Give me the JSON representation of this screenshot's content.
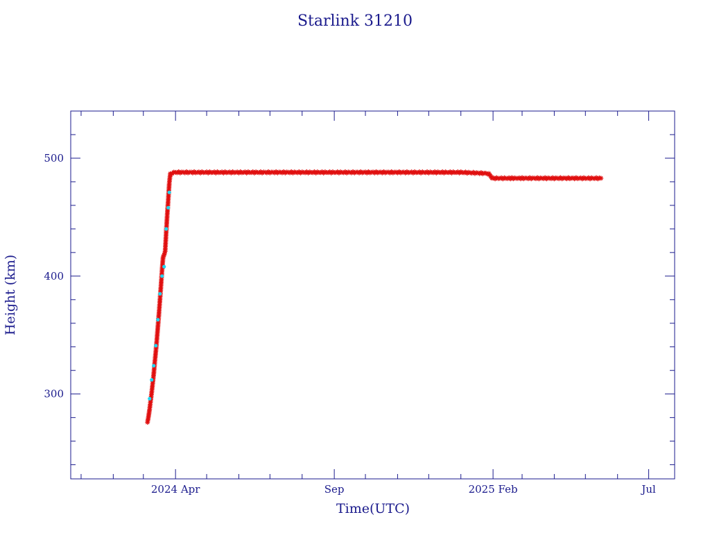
{
  "chart_data": {
    "type": "scatter",
    "title": "Starlink 31210",
    "xlabel": "Time(UTC)",
    "ylabel": "Height (km)",
    "x_unit": "date",
    "xlim": [
      "2023-12-22",
      "2025-07-26"
    ],
    "ylim": [
      228,
      540
    ],
    "x_ticks": [
      {
        "date": "2024-04-01",
        "label": "2024 Apr"
      },
      {
        "date": "2024-09-01",
        "label": "Sep"
      },
      {
        "date": "2025-02-01",
        "label": "2025 Feb"
      },
      {
        "date": "2025-07-01",
        "label": "Jul"
      }
    ],
    "y_ticks": [
      300,
      400,
      500
    ],
    "grid": false,
    "colors": {
      "axes": "#1a1a8c",
      "text": "#1a1a8c",
      "main_series": "#e01010",
      "secondary_series": "#22d3ee"
    },
    "series": [
      {
        "color": "#e01010",
        "marker": "asterisk",
        "x": [
          "2024-03-05",
          "2024-03-06",
          "2024-03-07",
          "2024-03-08",
          "2024-03-09",
          "2024-03-10",
          "2024-03-11",
          "2024-03-12",
          "2024-03-13",
          "2024-03-14",
          "2024-03-15",
          "2024-03-16",
          "2024-03-17",
          "2024-03-18",
          "2024-03-19",
          "2024-03-20",
          "2024-03-21",
          "2024-03-22",
          "2024-03-23",
          "2024-03-24",
          "2024-03-25",
          "2024-03-26",
          "2024-03-27",
          "2024-04-01",
          "2024-05-01",
          "2024-06-01",
          "2024-07-01",
          "2024-08-01",
          "2024-09-01",
          "2024-10-01",
          "2024-11-01",
          "2024-12-01",
          "2025-01-01",
          "2025-01-28",
          "2025-01-31",
          "2025-02-15",
          "2025-03-01",
          "2025-04-01",
          "2025-05-01",
          "2025-05-16"
        ],
        "y": [
          276,
          281,
          287,
          294,
          301,
          309,
          317,
          327,
          336,
          346,
          357,
          368,
          380,
          392,
          405,
          416,
          418,
          421,
          437,
          452,
          465,
          479,
          487,
          488,
          488,
          488,
          488,
          488,
          488,
          488,
          488,
          488,
          488,
          487,
          483,
          483,
          483,
          483,
          483,
          483
        ]
      },
      {
        "color": "#22d3ee",
        "marker": "dot",
        "x": [
          "2024-03-07",
          "2024-03-09",
          "2024-03-11",
          "2024-03-13",
          "2024-03-15",
          "2024-03-17",
          "2024-03-19",
          "2024-03-21",
          "2024-03-23",
          "2024-03-25",
          "2024-03-26"
        ],
        "y": [
          296,
          312,
          324,
          341,
          363,
          385,
          400,
          408,
          440,
          458,
          471
        ]
      }
    ]
  }
}
